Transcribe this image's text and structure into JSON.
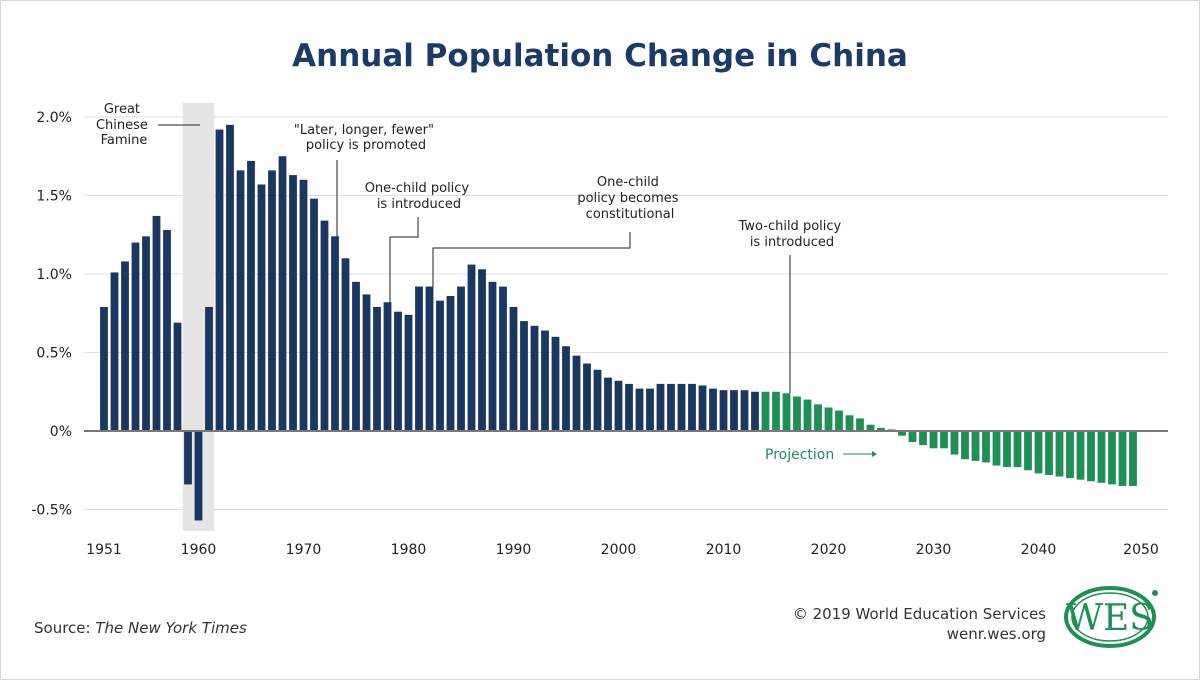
{
  "chart_data": {
    "type": "bar",
    "title": "Annual Population Change in China",
    "xlabel": "",
    "ylabel": "",
    "ylim": [
      -0.6,
      2.0
    ],
    "yticks": [
      {
        "value": 2.0,
        "label": "2.0%"
      },
      {
        "value": 1.5,
        "label": "1.5%"
      },
      {
        "value": 1.0,
        "label": "1.0%"
      },
      {
        "value": 0.5,
        "label": "0.5%"
      },
      {
        "value": 0,
        "label": "0%"
      },
      {
        "value": -0.5,
        "label": "-0.5%"
      }
    ],
    "xticks": [
      "1951",
      "1960",
      "1970",
      "1980",
      "1990",
      "2000",
      "2010",
      "2020",
      "2030",
      "2040",
      "2050"
    ],
    "grid": true,
    "start_year": 1951,
    "series": [
      {
        "name": "Historical",
        "color": "#1b3761",
        "values": [
          0.79,
          1.01,
          1.08,
          1.2,
          1.24,
          1.37,
          1.28,
          0.69,
          -0.34,
          -0.57,
          0.79,
          1.92,
          1.95,
          1.66,
          1.72,
          1.57,
          1.66,
          1.75,
          1.63,
          1.6,
          1.48,
          1.34,
          1.24,
          1.1,
          0.95,
          0.87,
          0.79,
          0.82,
          0.76,
          0.74,
          0.92,
          0.92,
          0.83,
          0.86,
          0.92,
          1.06,
          1.03,
          0.95,
          0.92,
          0.79,
          0.7,
          0.67,
          0.64,
          0.6,
          0.54,
          0.48,
          0.43,
          0.39,
          0.34,
          0.32,
          0.3,
          0.27,
          0.27,
          0.3,
          0.3,
          0.3,
          0.3,
          0.29,
          0.27,
          0.26,
          0.26,
          0.26,
          0.25
        ]
      },
      {
        "name": "Projection",
        "color": "#1f8f55",
        "values": [
          0.25,
          0.25,
          0.24,
          0.22,
          0.2,
          0.17,
          0.15,
          0.13,
          0.1,
          0.08,
          0.04,
          0.02,
          0.01,
          -0.03,
          -0.07,
          -0.09,
          -0.11,
          -0.11,
          -0.15,
          -0.18,
          -0.19,
          -0.2,
          -0.22,
          -0.23,
          -0.23,
          -0.25,
          -0.27,
          -0.28,
          -0.29,
          -0.3,
          -0.31,
          -0.32,
          -0.33,
          -0.34,
          -0.35,
          -0.35
        ]
      }
    ],
    "shaded_region": {
      "label": "Great Chinese Famine",
      "from": 1958.5,
      "to": 1961.5
    },
    "annotations": [
      {
        "id": "famine",
        "lines": [
          "Great",
          "Chinese",
          "Famine"
        ]
      },
      {
        "id": "later",
        "lines": [
          "\"Later, longer, fewer\"",
          "policy is promoted"
        ],
        "year": 1973
      },
      {
        "id": "onechild",
        "lines": [
          "One-child policy",
          "is introduced"
        ],
        "year": 1978
      },
      {
        "id": "constitutional",
        "lines": [
          "One-child",
          "policy becomes",
          "constitutional"
        ],
        "year": 1982
      },
      {
        "id": "twochild",
        "lines": [
          "Two-child policy",
          "is introduced"
        ],
        "year": 2016
      }
    ],
    "projection_label": "Projection"
  },
  "footer": {
    "source_prefix": "Source: ",
    "source_name": "The New York Times",
    "copyright": "© 2019 World Education Services",
    "url": "wenr.wes.org",
    "logo_text": "WES"
  }
}
